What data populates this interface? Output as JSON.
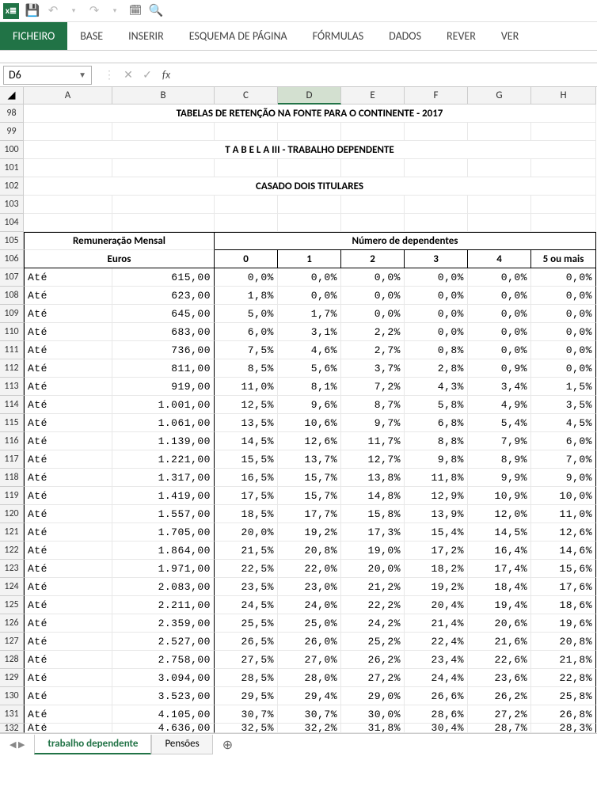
{
  "qat": {
    "app_abbrev": "x≣"
  },
  "ribbon": {
    "tabs": [
      "FICHEIRO",
      "BASE",
      "INSERIR",
      "ESQUEMA DE PÁGINA",
      "FÓRMULAS",
      "DADOS",
      "REVER",
      "VER"
    ],
    "active_index": 0
  },
  "namebox": {
    "value": "D6"
  },
  "columns": {
    "labels": [
      "A",
      "B",
      "C",
      "D",
      "E",
      "F",
      "G",
      "H"
    ],
    "widths": [
      112,
      129,
      80,
      80,
      80,
      80,
      80,
      82
    ],
    "selected_index": 3
  },
  "titles": {
    "main": "TABELAS DE RETENÇÃO NA FONTE PARA  O CONTINENTE - 2017",
    "sub1": "T A B E L A III - TRABALHO DEPENDENTE",
    "sub2": "CASADO DOIS TITULARES"
  },
  "table": {
    "header1_left": "Remuneração Mensal",
    "header1_right": "Número de dependentes",
    "header2_left": "Euros",
    "dep_labels": [
      "0",
      "1",
      "2",
      "3",
      "4",
      "5 ou mais"
    ],
    "row_label": "Até",
    "first_row_num": 107,
    "rows": [
      {
        "amount": "615,00",
        "v": [
          "0,0%",
          "0,0%",
          "0,0%",
          "0,0%",
          "0,0%",
          "0,0%"
        ]
      },
      {
        "amount": "623,00",
        "v": [
          "1,8%",
          "0,0%",
          "0,0%",
          "0,0%",
          "0,0%",
          "0,0%"
        ]
      },
      {
        "amount": "645,00",
        "v": [
          "5,0%",
          "1,7%",
          "0,0%",
          "0,0%",
          "0,0%",
          "0,0%"
        ]
      },
      {
        "amount": "683,00",
        "v": [
          "6,0%",
          "3,1%",
          "2,2%",
          "0,0%",
          "0,0%",
          "0,0%"
        ]
      },
      {
        "amount": "736,00",
        "v": [
          "7,5%",
          "4,6%",
          "2,7%",
          "0,8%",
          "0,0%",
          "0,0%"
        ]
      },
      {
        "amount": "811,00",
        "v": [
          "8,5%",
          "5,6%",
          "3,7%",
          "2,8%",
          "0,9%",
          "0,0%"
        ]
      },
      {
        "amount": "919,00",
        "v": [
          "11,0%",
          "8,1%",
          "7,2%",
          "4,3%",
          "3,4%",
          "1,5%"
        ]
      },
      {
        "amount": "1.001,00",
        "v": [
          "12,5%",
          "9,6%",
          "8,7%",
          "5,8%",
          "4,9%",
          "3,5%"
        ]
      },
      {
        "amount": "1.061,00",
        "v": [
          "13,5%",
          "10,6%",
          "9,7%",
          "6,8%",
          "5,4%",
          "4,5%"
        ]
      },
      {
        "amount": "1.139,00",
        "v": [
          "14,5%",
          "12,6%",
          "11,7%",
          "8,8%",
          "7,9%",
          "6,0%"
        ]
      },
      {
        "amount": "1.221,00",
        "v": [
          "15,5%",
          "13,7%",
          "12,7%",
          "9,8%",
          "8,9%",
          "7,0%"
        ]
      },
      {
        "amount": "1.317,00",
        "v": [
          "16,5%",
          "15,7%",
          "13,8%",
          "11,8%",
          "9,9%",
          "9,0%"
        ]
      },
      {
        "amount": "1.419,00",
        "v": [
          "17,5%",
          "15,7%",
          "14,8%",
          "12,9%",
          "10,9%",
          "10,0%"
        ]
      },
      {
        "amount": "1.557,00",
        "v": [
          "18,5%",
          "17,7%",
          "15,8%",
          "13,9%",
          "12,0%",
          "11,0%"
        ]
      },
      {
        "amount": "1.705,00",
        "v": [
          "20,0%",
          "19,2%",
          "17,3%",
          "15,4%",
          "14,5%",
          "12,6%"
        ]
      },
      {
        "amount": "1.864,00",
        "v": [
          "21,5%",
          "20,8%",
          "19,0%",
          "17,2%",
          "16,4%",
          "14,6%"
        ]
      },
      {
        "amount": "1.971,00",
        "v": [
          "22,5%",
          "22,0%",
          "20,0%",
          "18,2%",
          "17,4%",
          "15,6%"
        ]
      },
      {
        "amount": "2.083,00",
        "v": [
          "23,5%",
          "23,0%",
          "21,2%",
          "19,2%",
          "18,4%",
          "17,6%"
        ]
      },
      {
        "amount": "2.211,00",
        "v": [
          "24,5%",
          "24,0%",
          "22,2%",
          "20,4%",
          "19,4%",
          "18,6%"
        ]
      },
      {
        "amount": "2.359,00",
        "v": [
          "25,5%",
          "25,0%",
          "24,2%",
          "21,4%",
          "20,6%",
          "19,6%"
        ]
      },
      {
        "amount": "2.527,00",
        "v": [
          "26,5%",
          "26,0%",
          "25,2%",
          "22,4%",
          "21,6%",
          "20,8%"
        ]
      },
      {
        "amount": "2.758,00",
        "v": [
          "27,5%",
          "27,0%",
          "26,2%",
          "23,4%",
          "22,6%",
          "21,8%"
        ]
      },
      {
        "amount": "3.094,00",
        "v": [
          "28,5%",
          "28,0%",
          "27,2%",
          "24,4%",
          "23,6%",
          "22,8%"
        ]
      },
      {
        "amount": "3.523,00",
        "v": [
          "29,5%",
          "29,4%",
          "29,0%",
          "26,6%",
          "26,2%",
          "25,8%"
        ]
      },
      {
        "amount": "4.105,00",
        "v": [
          "30,7%",
          "30,7%",
          "30,0%",
          "28,6%",
          "27,2%",
          "26,8%"
        ]
      },
      {
        "amount": "4.636,00",
        "v": [
          "32,5%",
          "32,2%",
          "31,8%",
          "30,4%",
          "28,7%",
          "28,3%"
        ]
      }
    ]
  },
  "sheets": {
    "tabs": [
      "trabalho dependente",
      "Pensões"
    ],
    "active_index": 0
  }
}
